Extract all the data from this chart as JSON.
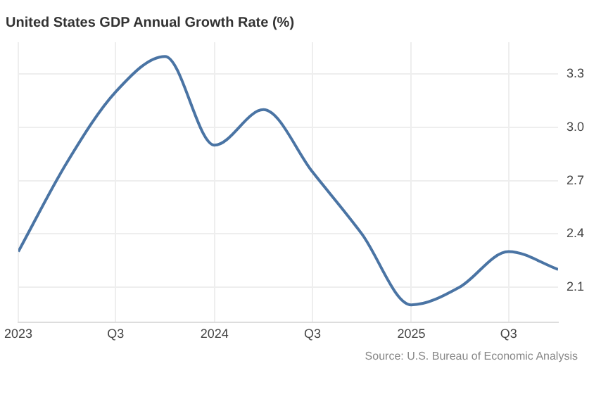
{
  "chart_data": {
    "type": "line",
    "title": "United States GDP Annual Growth Rate (%)",
    "x": [
      "2023-01",
      "2023-04",
      "2023-07",
      "2023-10",
      "2024-01",
      "2024-04",
      "2024-07",
      "2024-10",
      "2025-01",
      "2025-04",
      "2025-07",
      "2025-10"
    ],
    "series": [
      {
        "color": "#4a74a4",
        "values": [
          2.3,
          2.8,
          3.2,
          3.4,
          2.9,
          3.1,
          2.75,
          2.4,
          2.0,
          2.1,
          2.3,
          2.2
        ]
      }
    ],
    "xlim": [
      "2023-01",
      "2025-10"
    ],
    "xticks": [
      {
        "value": "2023-01",
        "label": "2023"
      },
      {
        "value": "2023-07",
        "label": "Q3"
      },
      {
        "value": "2024-01",
        "label": "2024"
      },
      {
        "value": "2024-07",
        "label": "Q3"
      },
      {
        "value": "2025-01",
        "label": "2025"
      },
      {
        "value": "2025-07",
        "label": "Q3"
      }
    ],
    "ylim": [
      1.9,
      3.48
    ],
    "yticks": [
      2.1,
      2.4,
      2.7,
      {
        "value": 3,
        "label": "3.0"
      },
      3.3
    ],
    "grid": true,
    "legend": false,
    "marker": "none",
    "line_style": "solid",
    "annotations": [
      "Source: U.S. Bureau of Economic Analysis"
    ]
  }
}
